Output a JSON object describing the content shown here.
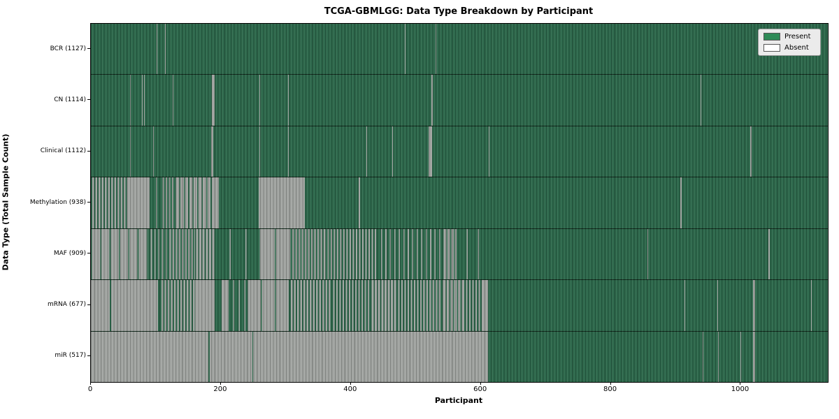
{
  "figure": {
    "title": "TCGA-GBMLGG: Data Type Breakdown by Participant",
    "xlabel": "Participant",
    "ylabel": "Data Type (Total Sample Count)"
  },
  "legend": {
    "items": [
      {
        "label": "Present",
        "color": "#2e8b57"
      },
      {
        "label": "Absent",
        "color": "#ffffff"
      }
    ]
  },
  "colors": {
    "present_fill": "#2d694c",
    "absent_fill": "#a3a6a3",
    "plot_border": "#000000"
  },
  "chart_data": {
    "type": "heatmap",
    "title": "TCGA-GBMLGG: Data Type Breakdown by Participant",
    "xlabel": "Participant",
    "ylabel": "Data Type (Total Sample Count)",
    "x_max": 1134,
    "x_ticks": [
      0,
      200,
      400,
      600,
      800,
      1000
    ],
    "legend_position": "upper-right",
    "segment_format": "[start_participant, end_participant, fraction_present]",
    "rows": [
      {
        "name": "BCR",
        "label": "BCR (1127)",
        "total_samples": 1127,
        "segments": [
          [
            0,
            101,
            1
          ],
          [
            101,
            102,
            0
          ],
          [
            102,
            114,
            1
          ],
          [
            114,
            115,
            0
          ],
          [
            115,
            483,
            1
          ],
          [
            483,
            484,
            0
          ],
          [
            484,
            530,
            1
          ],
          [
            530,
            531,
            0
          ],
          [
            531,
            1134,
            1
          ]
        ]
      },
      {
        "name": "CN",
        "label": "CN (1114)",
        "total_samples": 1114,
        "segments": [
          [
            0,
            60,
            1
          ],
          [
            60,
            61,
            0
          ],
          [
            61,
            79,
            1
          ],
          [
            79,
            80,
            0
          ],
          [
            80,
            82,
            1
          ],
          [
            82,
            83,
            0
          ],
          [
            83,
            106,
            1
          ],
          [
            106,
            107,
            0
          ],
          [
            107,
            126,
            1
          ],
          [
            126,
            127,
            0
          ],
          [
            127,
            186,
            1
          ],
          [
            186,
            190,
            0
          ],
          [
            190,
            259,
            1
          ],
          [
            259,
            260,
            0
          ],
          [
            260,
            303,
            1
          ],
          [
            303,
            304,
            0
          ],
          [
            304,
            517,
            1
          ],
          [
            517,
            518,
            0
          ],
          [
            518,
            524,
            1
          ],
          [
            524,
            526,
            0
          ],
          [
            526,
            938,
            1
          ],
          [
            938,
            939,
            0
          ],
          [
            939,
            1134,
            1
          ]
        ]
      },
      {
        "name": "Clinical",
        "label": "Clinical (1112)",
        "total_samples": 1112,
        "segments": [
          [
            0,
            60,
            1
          ],
          [
            60,
            61,
            0
          ],
          [
            61,
            96,
            1
          ],
          [
            96,
            97,
            0
          ],
          [
            97,
            185,
            1
          ],
          [
            185,
            188,
            0
          ],
          [
            188,
            259,
            1
          ],
          [
            259,
            260,
            0
          ],
          [
            260,
            303,
            1
          ],
          [
            303,
            304,
            0
          ],
          [
            304,
            424,
            1
          ],
          [
            424,
            425,
            0
          ],
          [
            425,
            464,
            1
          ],
          [
            464,
            465,
            0
          ],
          [
            465,
            520,
            1
          ],
          [
            520,
            525,
            0
          ],
          [
            525,
            612,
            1
          ],
          [
            612,
            613,
            0
          ],
          [
            613,
            1015,
            1
          ],
          [
            1015,
            1017,
            0
          ],
          [
            1017,
            1134,
            1
          ]
        ]
      },
      {
        "name": "Methylation",
        "label": "Methylation (938)",
        "total_samples": 938,
        "segments": [
          [
            0,
            57,
            0.5
          ],
          [
            57,
            90,
            0
          ],
          [
            90,
            108,
            0.85
          ],
          [
            108,
            129,
            0.5
          ],
          [
            129,
            186,
            0.25
          ],
          [
            186,
            197,
            0
          ],
          [
            197,
            258,
            1
          ],
          [
            258,
            329,
            0
          ],
          [
            329,
            412,
            1
          ],
          [
            412,
            414,
            0
          ],
          [
            414,
            907,
            1
          ],
          [
            907,
            909,
            0
          ],
          [
            909,
            1134,
            1
          ]
        ]
      },
      {
        "name": "MAF",
        "label": "MAF (909)",
        "total_samples": 909,
        "segments": [
          [
            0,
            88,
            0.12
          ],
          [
            88,
            118,
            0.7
          ],
          [
            118,
            160,
            0.45
          ],
          [
            160,
            190,
            0.35
          ],
          [
            190,
            258,
            0.93
          ],
          [
            258,
            308,
            0.07
          ],
          [
            308,
            362,
            0.5
          ],
          [
            362,
            441,
            0.55
          ],
          [
            441,
            541,
            0.75
          ],
          [
            541,
            563,
            0.3
          ],
          [
            563,
            611,
            0.9
          ],
          [
            611,
            856,
            1
          ],
          [
            856,
            858,
            0
          ],
          [
            858,
            1043,
            1
          ],
          [
            1043,
            1045,
            0
          ],
          [
            1045,
            1134,
            1
          ]
        ]
      },
      {
        "name": "mRNA",
        "label": "mRNA (677)",
        "total_samples": 677,
        "segments": [
          [
            0,
            29,
            0
          ],
          [
            29,
            31,
            1
          ],
          [
            31,
            103,
            0
          ],
          [
            103,
            107,
            1
          ],
          [
            107,
            160,
            0.45
          ],
          [
            160,
            190,
            0
          ],
          [
            190,
            201,
            1
          ],
          [
            201,
            212,
            0
          ],
          [
            212,
            240,
            0.8
          ],
          [
            240,
            306,
            0.08
          ],
          [
            306,
            370,
            0.4
          ],
          [
            370,
            430,
            0.55
          ],
          [
            430,
            470,
            0.35
          ],
          [
            470,
            540,
            0.5
          ],
          [
            540,
            575,
            0.3
          ],
          [
            575,
            602,
            0.55
          ],
          [
            602,
            611,
            0
          ],
          [
            611,
            913,
            1
          ],
          [
            913,
            914,
            0
          ],
          [
            914,
            964,
            1
          ],
          [
            964,
            965,
            0
          ],
          [
            965,
            1019,
            1
          ],
          [
            1019,
            1022,
            0
          ],
          [
            1022,
            1108,
            1
          ],
          [
            1108,
            1109,
            0
          ],
          [
            1109,
            1134,
            1
          ]
        ]
      },
      {
        "name": "miR",
        "label": "miR (517)",
        "total_samples": 517,
        "segments": [
          [
            0,
            181,
            0
          ],
          [
            181,
            183,
            1
          ],
          [
            183,
            249,
            0
          ],
          [
            249,
            250,
            1
          ],
          [
            250,
            611,
            0
          ],
          [
            611,
            941,
            1
          ],
          [
            941,
            942,
            0
          ],
          [
            942,
            965,
            1
          ],
          [
            965,
            966,
            0
          ],
          [
            966,
            999,
            1
          ],
          [
            999,
            1001,
            0
          ],
          [
            1001,
            1019,
            1
          ],
          [
            1019,
            1022,
            0
          ],
          [
            1022,
            1134,
            1
          ]
        ]
      }
    ]
  }
}
